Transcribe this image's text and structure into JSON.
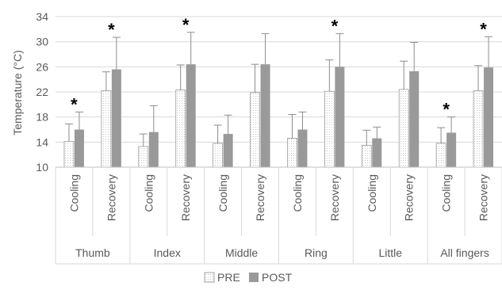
{
  "chart_data": {
    "type": "bar",
    "ylabel": "Temperature (°C)",
    "ylim": [
      10,
      34
    ],
    "yticks": [
      10,
      14,
      18,
      22,
      26,
      30,
      34
    ],
    "grid": true,
    "legend_position": "bottom",
    "groups": [
      "Thumb",
      "Index",
      "Middle",
      "Ring",
      "Little",
      "All fingers"
    ],
    "subcategories": [
      "Cooling",
      "Recovery"
    ],
    "series": [
      {
        "name": "PRE",
        "color": "#ffffff",
        "pattern": "dotted",
        "values": [
          14.1,
          22.2,
          13.3,
          22.3,
          13.8,
          21.9,
          14.6,
          22.1,
          13.5,
          22.4,
          13.8,
          22.2
        ],
        "errors": [
          2.8,
          3.0,
          2.0,
          4.0,
          2.9,
          4.5,
          3.8,
          5.0,
          2.4,
          4.5,
          2.5,
          4.0
        ]
      },
      {
        "name": "POST",
        "color": "#999999",
        "pattern": "solid",
        "values": [
          16.0,
          25.6,
          15.6,
          26.4,
          15.3,
          26.4,
          16.0,
          26.0,
          14.6,
          25.3,
          15.5,
          25.9
        ],
        "errors": [
          2.8,
          5.1,
          4.2,
          5.1,
          3.0,
          4.9,
          2.8,
          5.3,
          1.8,
          4.6,
          2.5,
          4.9
        ]
      }
    ],
    "significance_marker": "*",
    "significant_subcategories": [
      0,
      1,
      3,
      7,
      10,
      11
    ]
  }
}
